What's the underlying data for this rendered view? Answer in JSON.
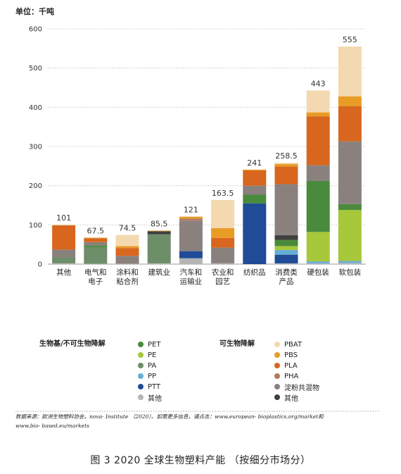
{
  "unit_label": "单位：千吨",
  "caption": "图 3  2020 全球生物塑料产能 （按细分市场分）",
  "source_line1": "数据来源：欧洲生物塑料协会，nova- Institute （2020）。如需更多信息，请点击：www.european- bioplastics.org/market和",
  "source_line2": "www.bio- based.eu/markets",
  "legend": {
    "group1_title": "生物基/不可生物降解",
    "group2_title": "可生物降解",
    "group1": [
      {
        "label": "PET",
        "color": "#4a8a3c"
      },
      {
        "label": "PE",
        "color": "#a6c83a"
      },
      {
        "label": "PA",
        "color": "#6e8e6a"
      },
      {
        "label": "PP",
        "color": "#67acd7"
      },
      {
        "label": "PTT",
        "color": "#1f4b97"
      },
      {
        "label": "其他",
        "color": "#b5b5b5"
      }
    ],
    "group2": [
      {
        "label": "PBAT",
        "color": "#f4d9b0"
      },
      {
        "label": "PBS",
        "color": "#e89c26"
      },
      {
        "label": "PLA",
        "color": "#d8661e"
      },
      {
        "label": "PHA",
        "color": "#b27a60"
      },
      {
        "label": "淀粉共混物",
        "color": "#8a817e"
      },
      {
        "label": "其他",
        "color": "#3f3f3f"
      }
    ]
  },
  "chart_data": {
    "type": "bar",
    "stacked": true,
    "ylim": [
      0,
      600
    ],
    "yticks": [
      0,
      100,
      200,
      300,
      400,
      500,
      600
    ],
    "grid": true,
    "legend_position": "bottom",
    "categories": [
      [
        "其他"
      ],
      [
        "电气和",
        "电子"
      ],
      [
        "涂料和",
        "粘合剂"
      ],
      [
        "建筑业"
      ],
      [
        "汽车和",
        "运输业"
      ],
      [
        "农业和",
        "园艺"
      ],
      [
        "纺织品"
      ],
      [
        "消费类",
        "产品"
      ],
      [
        "硬包装"
      ],
      [
        "软包装"
      ]
    ],
    "totals": [
      "101",
      "67.5",
      "74.5",
      "85.5",
      "121",
      "163.5",
      "241",
      "258.5",
      "443",
      "555"
    ],
    "series": [
      {
        "name": "其他",
        "color": "#b5b5b5",
        "values": [
          2,
          1,
          1,
          2,
          15,
          2,
          0,
          2,
          2,
          3
        ]
      },
      {
        "name": "PA",
        "color": "#6e8e6a",
        "values": [
          15,
          43,
          0,
          74,
          0,
          0,
          0,
          0,
          0,
          0
        ]
      },
      {
        "name": "PTT",
        "color": "#1f4b97",
        "values": [
          0,
          0,
          0,
          0,
          18,
          0,
          155,
          22,
          0,
          0
        ]
      },
      {
        "name": "PP",
        "color": "#67acd7",
        "values": [
          0,
          0,
          0,
          0,
          0,
          0,
          0,
          12,
          5,
          5
        ]
      },
      {
        "name": "PE",
        "color": "#a6c83a",
        "values": [
          0,
          0,
          0,
          0,
          0,
          0,
          0,
          10,
          75,
          130
        ]
      },
      {
        "name": "PET",
        "color": "#4a8a3c",
        "values": [
          0,
          4,
          0,
          0,
          0,
          0,
          22,
          16,
          130,
          15
        ]
      },
      {
        "name": "其他",
        "color": "#3f3f3f",
        "values": [
          0,
          0,
          0,
          8,
          0,
          0,
          0,
          12,
          0,
          0
        ]
      },
      {
        "name": "淀粉共混物",
        "color": "#8a817e",
        "values": [
          20,
          8,
          20,
          0,
          78,
          40,
          23,
          130,
          40,
          160
        ]
      },
      {
        "name": "PHA",
        "color": "#b27a60",
        "values": [
          0,
          0,
          0,
          0,
          5,
          0,
          0,
          0,
          0,
          0
        ]
      },
      {
        "name": "PLA",
        "color": "#d8661e",
        "values": [
          62,
          10,
          20,
          0,
          0,
          25,
          39,
          45,
          125,
          90
        ]
      },
      {
        "name": "PBS",
        "color": "#e89c26",
        "values": [
          0,
          1.5,
          5,
          1.5,
          5,
          25,
          2,
          6.5,
          10,
          25
        ]
      },
      {
        "name": "PBAT",
        "color": "#f4d9b0",
        "values": [
          2,
          0,
          28.5,
          0,
          0,
          71.5,
          0,
          3,
          56,
          127
        ]
      }
    ]
  }
}
